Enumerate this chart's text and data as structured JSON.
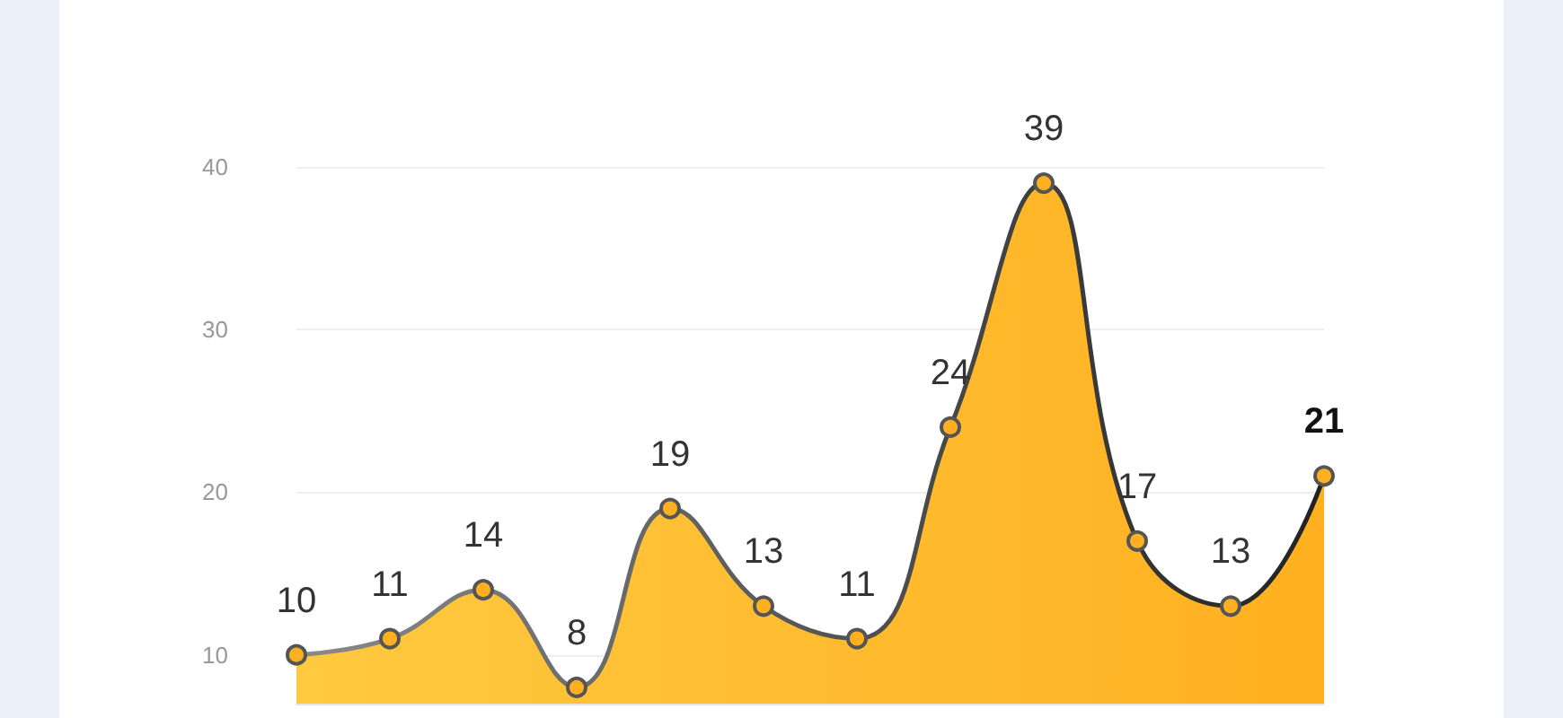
{
  "chart_data": {
    "type": "area",
    "categories": [
      null,
      null,
      null,
      null,
      null,
      null,
      null,
      null,
      null,
      null,
      null,
      null
    ],
    "series": [
      {
        "color": "#ffb020",
        "values": [
          10,
          11,
          14,
          8,
          19,
          13,
          11,
          24,
          39,
          17,
          13,
          21
        ]
      }
    ],
    "ylim": [
      7,
      40
    ],
    "yticks": [
      10,
      20,
      30,
      40
    ],
    "grid": "y",
    "marker": "circle",
    "data_labels": true
  }
}
